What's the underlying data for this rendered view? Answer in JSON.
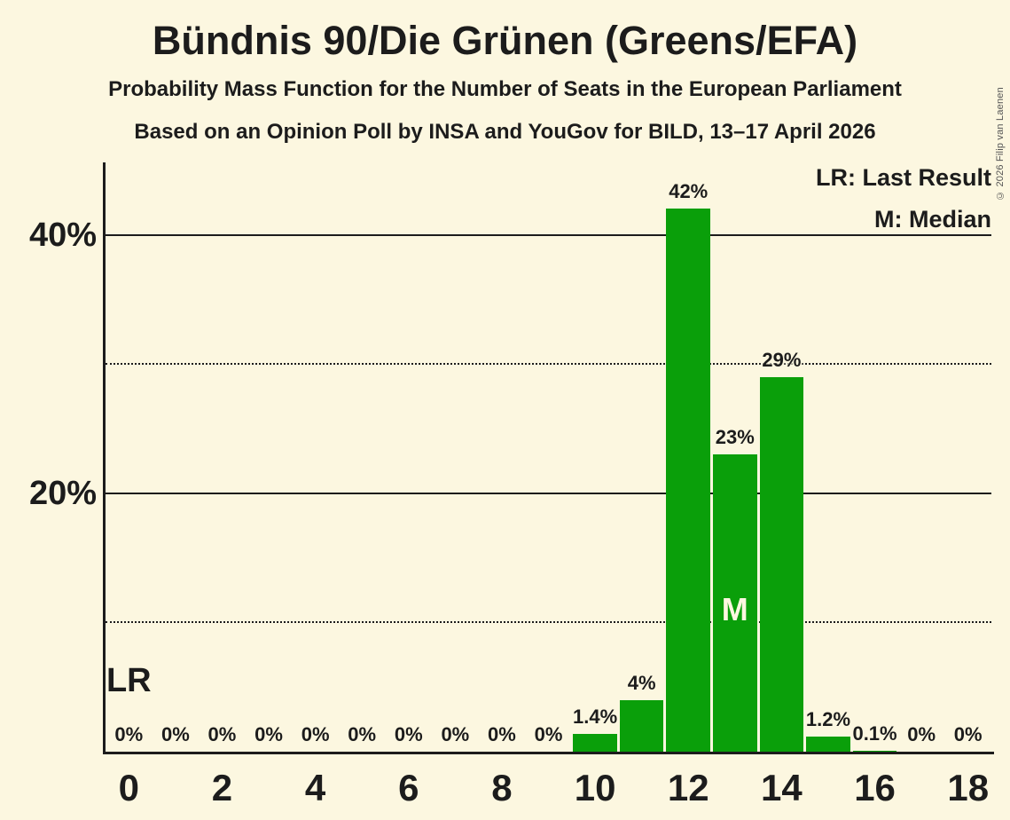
{
  "title": "Bündnis 90/Die Grünen (Greens/EFA)",
  "subtitle": "Probability Mass Function for the Number of Seats in the European Parliament",
  "source_line": "Based on an Opinion Poll by INSA and YouGov for BILD, 13–17 April 2026",
  "copyright": "© 2026 Filip van Laenen",
  "legend": {
    "lr": "LR: Last Result",
    "m": "M: Median"
  },
  "annotations": {
    "lr_label": "LR",
    "median_label": "M"
  },
  "colors": {
    "background": "#FCF7E0",
    "bar": "#0A9F0A",
    "text": "#1C1C1C",
    "median_text": "#FCF7E0",
    "copyright": "#555555"
  },
  "chart_data": {
    "type": "bar",
    "title": "Bündnis 90/Die Grünen (Greens/EFA)",
    "subtitle": "Probability Mass Function for the Number of Seats in the European Parliament",
    "source": "Based on an Opinion Poll by INSA and YouGov for BILD, 13–17 April 2026",
    "x": [
      0,
      1,
      2,
      3,
      4,
      5,
      6,
      7,
      8,
      9,
      10,
      11,
      12,
      13,
      14,
      15,
      16,
      17,
      18
    ],
    "values": [
      0,
      0,
      0,
      0,
      0,
      0,
      0,
      0,
      0,
      0,
      1.4,
      4,
      42,
      23,
      29,
      1.2,
      0.1,
      0,
      0
    ],
    "bar_labels": [
      "0%",
      "0%",
      "0%",
      "0%",
      "0%",
      "0%",
      "0%",
      "0%",
      "0%",
      "0%",
      "1.4%",
      "4%",
      "42%",
      "23%",
      "29%",
      "1.2%",
      "0.1%",
      "0%",
      "0%"
    ],
    "median_seat": 13,
    "last_result_seat": 0,
    "xticks": [
      0,
      2,
      4,
      6,
      8,
      10,
      12,
      14,
      16,
      18
    ],
    "yticks": [
      {
        "value": 20,
        "label": "20%"
      },
      {
        "value": 40,
        "label": "40%"
      }
    ],
    "gridlines": [
      {
        "value": 10,
        "style": "dotted"
      },
      {
        "value": 20,
        "style": "solid"
      },
      {
        "value": 30,
        "style": "dotted"
      },
      {
        "value": 40,
        "style": "solid"
      }
    ],
    "ylim": [
      0,
      45.6
    ],
    "grid": "horizontal",
    "legend_position": "top-right"
  }
}
